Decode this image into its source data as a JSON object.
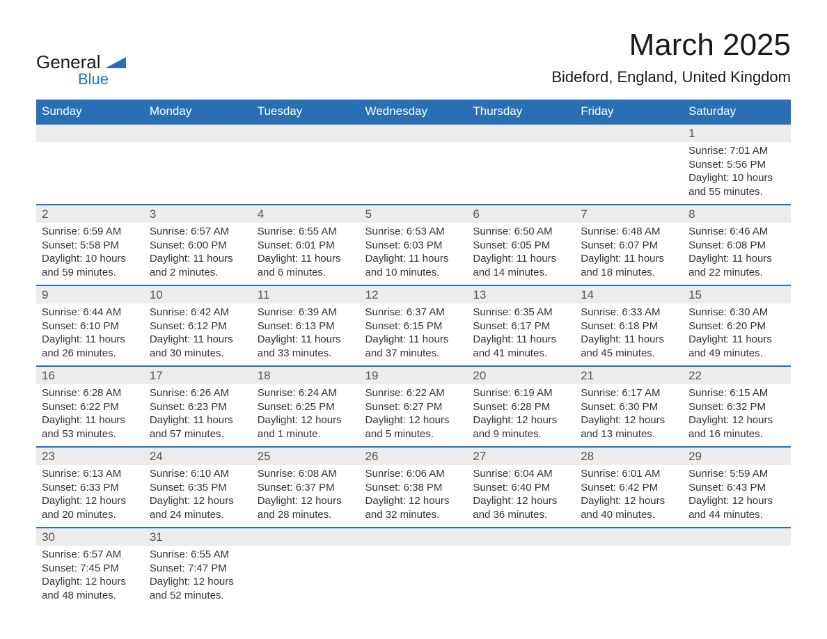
{
  "brand": {
    "top": "General",
    "bottom": "Blue",
    "shape_color": "#2a6fb5"
  },
  "title": "March 2025",
  "subtitle": "Bideford, England, United Kingdom",
  "colors": {
    "header_bg": "#2a6fb5",
    "header_fg": "#ffffff",
    "row_divider": "#2a6fb5",
    "daynum_bg": "#ececec",
    "text": "#333333",
    "daynum_fg": "#555555"
  },
  "weekdays": [
    "Sunday",
    "Monday",
    "Tuesday",
    "Wednesday",
    "Thursday",
    "Friday",
    "Saturday"
  ],
  "weeks": [
    [
      null,
      null,
      null,
      null,
      null,
      null,
      {
        "n": "1",
        "sunrise": "Sunrise: 7:01 AM",
        "sunset": "Sunset: 5:56 PM",
        "d1": "Daylight: 10 hours",
        "d2": "and 55 minutes."
      }
    ],
    [
      {
        "n": "2",
        "sunrise": "Sunrise: 6:59 AM",
        "sunset": "Sunset: 5:58 PM",
        "d1": "Daylight: 10 hours",
        "d2": "and 59 minutes."
      },
      {
        "n": "3",
        "sunrise": "Sunrise: 6:57 AM",
        "sunset": "Sunset: 6:00 PM",
        "d1": "Daylight: 11 hours",
        "d2": "and 2 minutes."
      },
      {
        "n": "4",
        "sunrise": "Sunrise: 6:55 AM",
        "sunset": "Sunset: 6:01 PM",
        "d1": "Daylight: 11 hours",
        "d2": "and 6 minutes."
      },
      {
        "n": "5",
        "sunrise": "Sunrise: 6:53 AM",
        "sunset": "Sunset: 6:03 PM",
        "d1": "Daylight: 11 hours",
        "d2": "and 10 minutes."
      },
      {
        "n": "6",
        "sunrise": "Sunrise: 6:50 AM",
        "sunset": "Sunset: 6:05 PM",
        "d1": "Daylight: 11 hours",
        "d2": "and 14 minutes."
      },
      {
        "n": "7",
        "sunrise": "Sunrise: 6:48 AM",
        "sunset": "Sunset: 6:07 PM",
        "d1": "Daylight: 11 hours",
        "d2": "and 18 minutes."
      },
      {
        "n": "8",
        "sunrise": "Sunrise: 6:46 AM",
        "sunset": "Sunset: 6:08 PM",
        "d1": "Daylight: 11 hours",
        "d2": "and 22 minutes."
      }
    ],
    [
      {
        "n": "9",
        "sunrise": "Sunrise: 6:44 AM",
        "sunset": "Sunset: 6:10 PM",
        "d1": "Daylight: 11 hours",
        "d2": "and 26 minutes."
      },
      {
        "n": "10",
        "sunrise": "Sunrise: 6:42 AM",
        "sunset": "Sunset: 6:12 PM",
        "d1": "Daylight: 11 hours",
        "d2": "and 30 minutes."
      },
      {
        "n": "11",
        "sunrise": "Sunrise: 6:39 AM",
        "sunset": "Sunset: 6:13 PM",
        "d1": "Daylight: 11 hours",
        "d2": "and 33 minutes."
      },
      {
        "n": "12",
        "sunrise": "Sunrise: 6:37 AM",
        "sunset": "Sunset: 6:15 PM",
        "d1": "Daylight: 11 hours",
        "d2": "and 37 minutes."
      },
      {
        "n": "13",
        "sunrise": "Sunrise: 6:35 AM",
        "sunset": "Sunset: 6:17 PM",
        "d1": "Daylight: 11 hours",
        "d2": "and 41 minutes."
      },
      {
        "n": "14",
        "sunrise": "Sunrise: 6:33 AM",
        "sunset": "Sunset: 6:18 PM",
        "d1": "Daylight: 11 hours",
        "d2": "and 45 minutes."
      },
      {
        "n": "15",
        "sunrise": "Sunrise: 6:30 AM",
        "sunset": "Sunset: 6:20 PM",
        "d1": "Daylight: 11 hours",
        "d2": "and 49 minutes."
      }
    ],
    [
      {
        "n": "16",
        "sunrise": "Sunrise: 6:28 AM",
        "sunset": "Sunset: 6:22 PM",
        "d1": "Daylight: 11 hours",
        "d2": "and 53 minutes."
      },
      {
        "n": "17",
        "sunrise": "Sunrise: 6:26 AM",
        "sunset": "Sunset: 6:23 PM",
        "d1": "Daylight: 11 hours",
        "d2": "and 57 minutes."
      },
      {
        "n": "18",
        "sunrise": "Sunrise: 6:24 AM",
        "sunset": "Sunset: 6:25 PM",
        "d1": "Daylight: 12 hours",
        "d2": "and 1 minute."
      },
      {
        "n": "19",
        "sunrise": "Sunrise: 6:22 AM",
        "sunset": "Sunset: 6:27 PM",
        "d1": "Daylight: 12 hours",
        "d2": "and 5 minutes."
      },
      {
        "n": "20",
        "sunrise": "Sunrise: 6:19 AM",
        "sunset": "Sunset: 6:28 PM",
        "d1": "Daylight: 12 hours",
        "d2": "and 9 minutes."
      },
      {
        "n": "21",
        "sunrise": "Sunrise: 6:17 AM",
        "sunset": "Sunset: 6:30 PM",
        "d1": "Daylight: 12 hours",
        "d2": "and 13 minutes."
      },
      {
        "n": "22",
        "sunrise": "Sunrise: 6:15 AM",
        "sunset": "Sunset: 6:32 PM",
        "d1": "Daylight: 12 hours",
        "d2": "and 16 minutes."
      }
    ],
    [
      {
        "n": "23",
        "sunrise": "Sunrise: 6:13 AM",
        "sunset": "Sunset: 6:33 PM",
        "d1": "Daylight: 12 hours",
        "d2": "and 20 minutes."
      },
      {
        "n": "24",
        "sunrise": "Sunrise: 6:10 AM",
        "sunset": "Sunset: 6:35 PM",
        "d1": "Daylight: 12 hours",
        "d2": "and 24 minutes."
      },
      {
        "n": "25",
        "sunrise": "Sunrise: 6:08 AM",
        "sunset": "Sunset: 6:37 PM",
        "d1": "Daylight: 12 hours",
        "d2": "and 28 minutes."
      },
      {
        "n": "26",
        "sunrise": "Sunrise: 6:06 AM",
        "sunset": "Sunset: 6:38 PM",
        "d1": "Daylight: 12 hours",
        "d2": "and 32 minutes."
      },
      {
        "n": "27",
        "sunrise": "Sunrise: 6:04 AM",
        "sunset": "Sunset: 6:40 PM",
        "d1": "Daylight: 12 hours",
        "d2": "and 36 minutes."
      },
      {
        "n": "28",
        "sunrise": "Sunrise: 6:01 AM",
        "sunset": "Sunset: 6:42 PM",
        "d1": "Daylight: 12 hours",
        "d2": "and 40 minutes."
      },
      {
        "n": "29",
        "sunrise": "Sunrise: 5:59 AM",
        "sunset": "Sunset: 6:43 PM",
        "d1": "Daylight: 12 hours",
        "d2": "and 44 minutes."
      }
    ],
    [
      {
        "n": "30",
        "sunrise": "Sunrise: 6:57 AM",
        "sunset": "Sunset: 7:45 PM",
        "d1": "Daylight: 12 hours",
        "d2": "and 48 minutes."
      },
      {
        "n": "31",
        "sunrise": "Sunrise: 6:55 AM",
        "sunset": "Sunset: 7:47 PM",
        "d1": "Daylight: 12 hours",
        "d2": "and 52 minutes."
      },
      null,
      null,
      null,
      null,
      null
    ]
  ]
}
